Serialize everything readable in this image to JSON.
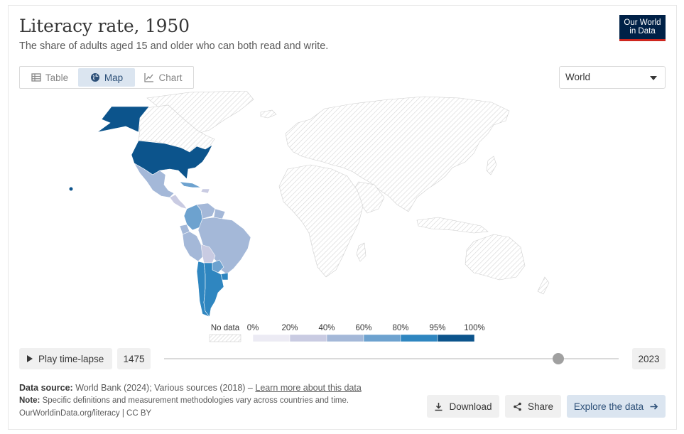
{
  "header": {
    "title": "Literacy rate, 1950",
    "subtitle": "The share of adults aged 15 and older who can both read and write.",
    "logo_line1": "Our World",
    "logo_line2": "in Data"
  },
  "tabs": [
    {
      "label": "Table",
      "icon": "table-icon",
      "active": false
    },
    {
      "label": "Map",
      "icon": "globe-icon",
      "active": true
    },
    {
      "label": "Chart",
      "icon": "line-chart-icon",
      "active": false
    }
  ],
  "region_select": {
    "value": "World"
  },
  "legend": {
    "no_data_label": "No data",
    "tick_labels": [
      "0%",
      "20%",
      "40%",
      "60%",
      "80%",
      "95%",
      "100%"
    ],
    "bins": [
      {
        "from": 0,
        "to": 20,
        "color": "#ecebf4"
      },
      {
        "from": 20,
        "to": 40,
        "color": "#c9cbe2"
      },
      {
        "from": 40,
        "to": 60,
        "color": "#a4b8d8"
      },
      {
        "from": 60,
        "to": 80,
        "color": "#6da2cf"
      },
      {
        "from": 80,
        "to": 95,
        "color": "#2f86c0"
      },
      {
        "from": 95,
        "to": 100,
        "color": "#0c548c"
      }
    ]
  },
  "colors": {
    "no_data_stroke": "#d2d2d2",
    "accent": "#2d5078",
    "logo_bg": "#002147",
    "logo_bar": "#ce261e"
  },
  "timeline": {
    "play_label": "Play time-lapse",
    "start_year": "1475",
    "end_year": "2023",
    "selected_year": 1950
  },
  "footer": {
    "source_label": "Data source:",
    "source_text": "World Bank (2024); Various sources (2018) –",
    "source_link": "Learn more about this data",
    "note_label": "Note:",
    "note_text": "Specific definitions and measurement methodologies vary across countries and time.",
    "url_text": "OurWorldinData.org/literacy | CC BY"
  },
  "actions": {
    "download": "Download",
    "share": "Share",
    "explore": "Explore the data"
  }
}
